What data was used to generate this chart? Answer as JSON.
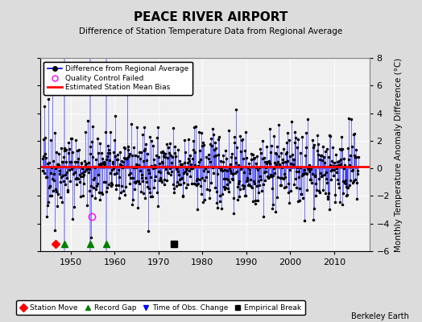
{
  "title": "PEACE RIVER AIRPORT",
  "subtitle": "Difference of Station Temperature Data from Regional Average",
  "ylabel": "Monthly Temperature Anomaly Difference (°C)",
  "xlabel_credit": "Berkeley Earth",
  "xlim": [
    1943,
    2018
  ],
  "ylim": [
    -6,
    8
  ],
  "yticks": [
    -6,
    -4,
    -2,
    0,
    2,
    4,
    6,
    8
  ],
  "xticks": [
    1950,
    1960,
    1970,
    1980,
    1990,
    2000,
    2010
  ],
  "mean_bias": 0.1,
  "background_color": "#dcdcdc",
  "plot_bg_color": "#f0f0f0",
  "line_color": "#0000ff",
  "bias_color": "#ff0000",
  "seed": 42,
  "n_points": 780,
  "start_year": 1943.5,
  "station_moves": [
    1946.5
  ],
  "record_gaps": [
    1948.5,
    1954.5,
    1958.0
  ],
  "obs_changes": [
    1948.5,
    1954.5,
    1958.0
  ],
  "empirical_breaks": [
    1973.5
  ],
  "qc_failed_x": [
    1954.7
  ],
  "qc_failed_y": [
    -3.5
  ]
}
